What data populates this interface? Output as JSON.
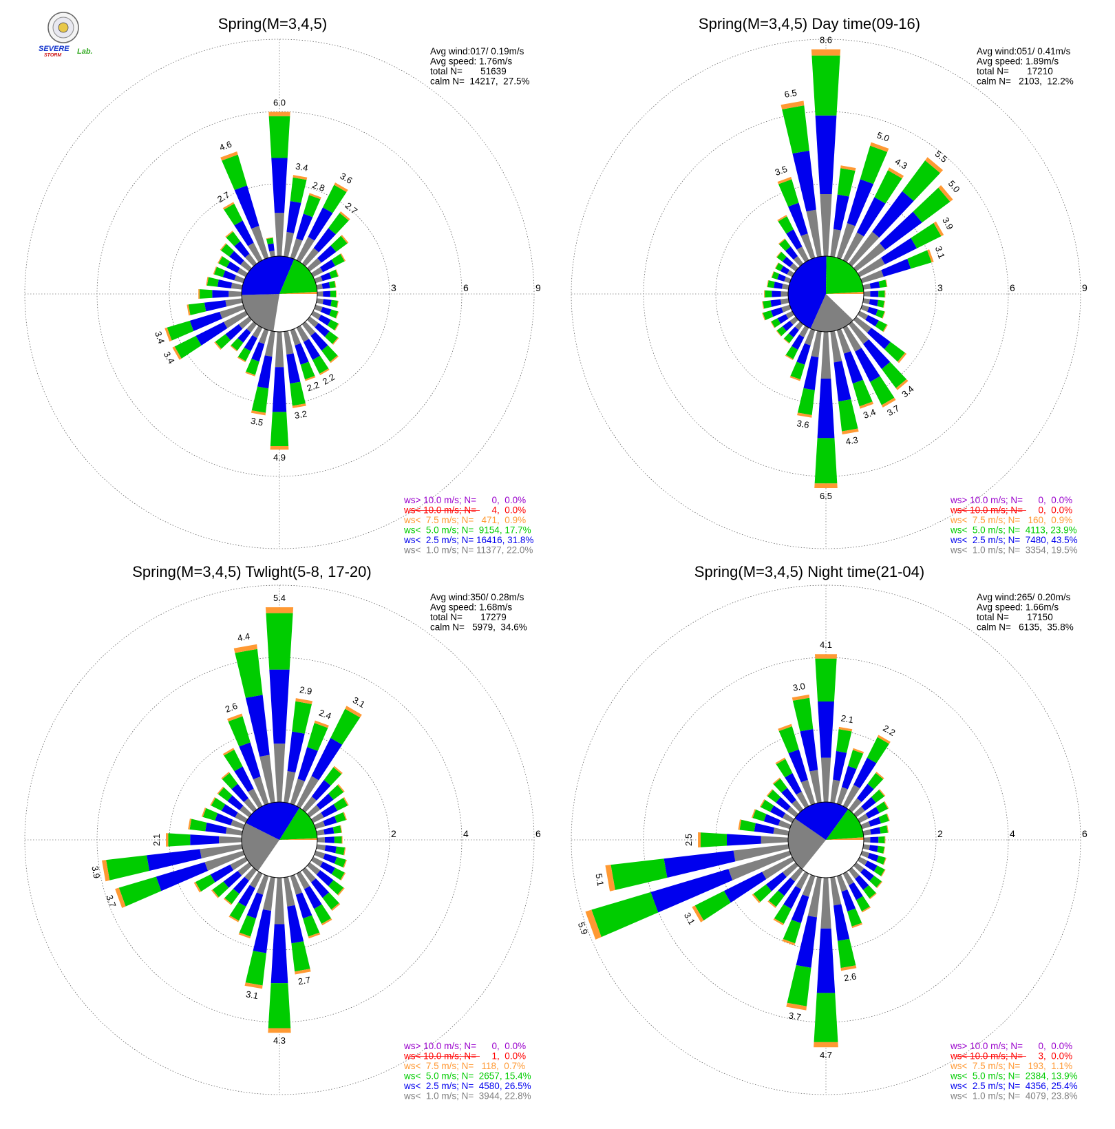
{
  "logo": {
    "line1": "SEVERE",
    "line2": "STORM",
    "line3": "Lab."
  },
  "colors": {
    "gt10": "#9900cc",
    "lt10": "#ff0000",
    "lt75": "#ff9933",
    "lt50": "#00cc00",
    "lt25": "#0000ee",
    "lt10ms": "#808080"
  },
  "chart_data": [
    {
      "type": "windrose",
      "title": "Spring(M=3,4,5)",
      "rings": [
        3,
        6,
        9
      ],
      "info": [
        "Avg wind:017/ 0.19m/s",
        "Avg speed: 1.76m/s",
        "total N=       51639",
        "calm N=  14217,  27.5%"
      ],
      "legend": [
        "ws> 10.0 m/s; N=      0,  0.0%",
        "ws< 10.0 m/s; N=      4,  0.0%",
        "ws<  7.5 m/s; N=   471,  0.9%",
        "ws<  5.0 m/s; N=  9154, 17.7%",
        "ws<  2.5 m/s; N= 16416, 31.8%",
        "ws<  1.0 m/s; N= 11377, 22.0%"
      ],
      "center_pie": [
        27.5,
        22.0,
        31.8,
        17.7,
        0.9
      ],
      "sectors": [
        {
          "dir": 0,
          "total": 6.0,
          "label": "6.0"
        },
        {
          "dir": 10,
          "total": 3.4,
          "label": "3.4"
        },
        {
          "dir": 20,
          "total": 2.8,
          "label": "2.8"
        },
        {
          "dir": 30,
          "total": 3.6,
          "label": "3.6"
        },
        {
          "dir": 40,
          "total": 2.7,
          "label": "2.7"
        },
        {
          "dir": 50,
          "total": 2.0
        },
        {
          "dir": 60,
          "total": 1.5
        },
        {
          "dir": 70,
          "total": 1.0
        },
        {
          "dir": 80,
          "total": 0.8
        },
        {
          "dir": 90,
          "total": 0.8
        },
        {
          "dir": 100,
          "total": 0.9
        },
        {
          "dir": 110,
          "total": 1.0
        },
        {
          "dir": 120,
          "total": 1.2
        },
        {
          "dir": 130,
          "total": 1.5
        },
        {
          "dir": 140,
          "total": 2.0
        },
        {
          "dir": 150,
          "total": 2.2,
          "label": "2.2"
        },
        {
          "dir": 160,
          "total": 2.2,
          "label": "2.2"
        },
        {
          "dir": 170,
          "total": 3.2,
          "label": "3.2"
        },
        {
          "dir": 180,
          "total": 4.9,
          "label": "4.9"
        },
        {
          "dir": 190,
          "total": 3.5,
          "label": "3.5"
        },
        {
          "dir": 200,
          "total": 2.0
        },
        {
          "dir": 210,
          "total": 1.6
        },
        {
          "dir": 220,
          "total": 1.4
        },
        {
          "dir": 230,
          "total": 1.8
        },
        {
          "dir": 240,
          "total": 3.4,
          "label": "3.4"
        },
        {
          "dir": 250,
          "total": 3.4,
          "label": "3.4"
        },
        {
          "dir": 260,
          "total": 2.3
        },
        {
          "dir": 270,
          "total": 1.8
        },
        {
          "dir": 280,
          "total": 1.5
        },
        {
          "dir": 290,
          "total": 1.3
        },
        {
          "dir": 300,
          "total": 1.3
        },
        {
          "dir": 310,
          "total": 1.5
        },
        {
          "dir": 320,
          "total": 1.7
        },
        {
          "dir": 330,
          "total": 2.7,
          "label": "2.7"
        },
        {
          "dir": 340,
          "total": 4.6,
          "label": "4.6"
        },
        {
          "dir": 350,
          "total": 0.8
        }
      ]
    },
    {
      "type": "windrose",
      "title": "Spring(M=3,4,5) Day time(09-16)",
      "rings": [
        3,
        6,
        9
      ],
      "info": [
        "Avg wind:051/ 0.41m/s",
        "Avg speed: 1.89m/s",
        "total N=       17210",
        "calm N=   2103,  12.2%"
      ],
      "legend": [
        "ws> 10.0 m/s; N=      0,  0.0%",
        "ws< 10.0 m/s; N=      0,  0.0%",
        "ws<  7.5 m/s; N=   160,  0.9%",
        "ws<  5.0 m/s; N=  4113, 23.9%",
        "ws<  2.5 m/s; N=  7480, 43.5%",
        "ws<  1.0 m/s; N=  3354, 19.5%"
      ],
      "center_pie": [
        12.2,
        19.5,
        43.5,
        23.9,
        0.9
      ],
      "sectors": [
        {
          "dir": 0,
          "total": 8.6,
          "label": "8.6"
        },
        {
          "dir": 10,
          "total": 3.8
        },
        {
          "dir": 20,
          "total": 5.0,
          "label": "5.0"
        },
        {
          "dir": 30,
          "total": 4.3,
          "label": "4.3"
        },
        {
          "dir": 40,
          "total": 5.5,
          "label": "5.5"
        },
        {
          "dir": 50,
          "total": 5.0,
          "label": "5.0"
        },
        {
          "dir": 60,
          "total": 3.9,
          "label": "3.9"
        },
        {
          "dir": 70,
          "total": 3.1,
          "label": "3.1"
        },
        {
          "dir": 80,
          "total": 1.0
        },
        {
          "dir": 90,
          "total": 0.9
        },
        {
          "dir": 100,
          "total": 0.9
        },
        {
          "dir": 110,
          "total": 1.0
        },
        {
          "dir": 120,
          "total": 1.3
        },
        {
          "dir": 130,
          "total": 2.6
        },
        {
          "dir": 140,
          "total": 3.4,
          "label": "3.4"
        },
        {
          "dir": 150,
          "total": 3.7,
          "label": "3.7"
        },
        {
          "dir": 160,
          "total": 3.4,
          "label": "3.4"
        },
        {
          "dir": 170,
          "total": 4.3,
          "label": "4.3"
        },
        {
          "dir": 180,
          "total": 6.5,
          "label": "6.5"
        },
        {
          "dir": 190,
          "total": 3.6,
          "label": "3.6"
        },
        {
          "dir": 200,
          "total": 2.2
        },
        {
          "dir": 210,
          "total": 1.5
        },
        {
          "dir": 220,
          "total": 1.0
        },
        {
          "dir": 230,
          "total": 1.0
        },
        {
          "dir": 240,
          "total": 1.0
        },
        {
          "dir": 250,
          "total": 1.2
        },
        {
          "dir": 260,
          "total": 1.1
        },
        {
          "dir": 270,
          "total": 1.0
        },
        {
          "dir": 280,
          "total": 0.9
        },
        {
          "dir": 290,
          "total": 0.8
        },
        {
          "dir": 300,
          "total": 0.8
        },
        {
          "dir": 310,
          "total": 1.0
        },
        {
          "dir": 320,
          "total": 1.3
        },
        {
          "dir": 330,
          "total": 2.1
        },
        {
          "dir": 340,
          "total": 3.5,
          "label": "3.5"
        },
        {
          "dir": 350,
          "total": 6.5,
          "label": "6.5"
        }
      ]
    },
    {
      "type": "windrose",
      "title": "Spring(M=3,4,5) Twlight(5-8, 17-20)",
      "rings": [
        2,
        4,
        6
      ],
      "info": [
        "Avg wind:350/ 0.28m/s",
        "Avg speed: 1.68m/s",
        "total N=       17279",
        "calm N=   5979,  34.6%"
      ],
      "legend": [
        "ws> 10.0 m/s; N=      0,  0.0%",
        "ws< 10.0 m/s; N=      1,  0.0%",
        "ws<  7.5 m/s; N=   118,  0.7%",
        "ws<  5.0 m/s; N=  2657, 15.4%",
        "ws<  2.5 m/s; N=  4580, 26.5%",
        "ws<  1.0 m/s; N=  3944, 22.8%"
      ],
      "center_pie": [
        34.6,
        22.8,
        26.5,
        15.4,
        0.7
      ],
      "sectors": [
        {
          "dir": 0,
          "total": 5.4,
          "label": "5.4"
        },
        {
          "dir": 10,
          "total": 2.9,
          "label": "2.9"
        },
        {
          "dir": 20,
          "total": 2.4,
          "label": "2.4"
        },
        {
          "dir": 30,
          "total": 3.1,
          "label": "3.1"
        },
        {
          "dir": 40,
          "total": 1.5
        },
        {
          "dir": 50,
          "total": 1.2
        },
        {
          "dir": 60,
          "total": 1.1
        },
        {
          "dir": 70,
          "total": 0.9
        },
        {
          "dir": 80,
          "total": 0.7
        },
        {
          "dir": 90,
          "total": 0.7
        },
        {
          "dir": 100,
          "total": 0.8
        },
        {
          "dir": 110,
          "total": 0.9
        },
        {
          "dir": 120,
          "total": 1.0
        },
        {
          "dir": 130,
          "total": 1.2
        },
        {
          "dir": 140,
          "total": 1.4
        },
        {
          "dir": 150,
          "total": 1.6
        },
        {
          "dir": 160,
          "total": 1.8
        },
        {
          "dir": 170,
          "total": 2.7,
          "label": "2.7"
        },
        {
          "dir": 180,
          "total": 4.3,
          "label": "4.3"
        },
        {
          "dir": 190,
          "total": 3.1,
          "label": "3.1"
        },
        {
          "dir": 200,
          "total": 1.8
        },
        {
          "dir": 210,
          "total": 1.5
        },
        {
          "dir": 220,
          "total": 1.2
        },
        {
          "dir": 230,
          "total": 1.3
        },
        {
          "dir": 240,
          "total": 1.6
        },
        {
          "dir": 250,
          "total": 3.7,
          "label": "3.7"
        },
        {
          "dir": 260,
          "total": 3.9,
          "label": "3.9"
        },
        {
          "dir": 270,
          "total": 2.1,
          "label": "2.1"
        },
        {
          "dir": 280,
          "total": 1.5
        },
        {
          "dir": 290,
          "total": 1.2
        },
        {
          "dir": 300,
          "total": 1.1
        },
        {
          "dir": 310,
          "total": 1.1
        },
        {
          "dir": 320,
          "total": 1.3
        },
        {
          "dir": 330,
          "total": 1.8
        },
        {
          "dir": 340,
          "total": 2.6,
          "label": "2.6"
        },
        {
          "dir": 350,
          "total": 4.4,
          "label": "4.4"
        }
      ]
    },
    {
      "type": "windrose",
      "title": "Spring(M=3,4,5) Night time(21-04)",
      "rings": [
        2,
        4,
        6
      ],
      "info": [
        "Avg wind:265/ 0.20m/s",
        "Avg speed: 1.66m/s",
        "total N=       17150",
        "calm N=   6135,  35.8%"
      ],
      "legend": [
        "ws> 10.0 m/s; N=      0,  0.0%",
        "ws< 10.0 m/s; N=      3,  0.0%",
        "ws<  7.5 m/s; N=   193,  1.1%",
        "ws<  5.0 m/s; N=  2384, 13.9%",
        "ws<  2.5 m/s; N=  4356, 25.4%",
        "ws<  1.0 m/s; N=  4079, 23.8%"
      ],
      "center_pie": [
        35.8,
        23.8,
        25.4,
        13.9,
        1.1
      ],
      "sectors": [
        {
          "dir": 0,
          "total": 4.1,
          "label": "4.1"
        },
        {
          "dir": 10,
          "total": 2.1,
          "label": "2.1"
        },
        {
          "dir": 20,
          "total": 1.6
        },
        {
          "dir": 30,
          "total": 2.2,
          "label": "2.2"
        },
        {
          "dir": 40,
          "total": 1.3
        },
        {
          "dir": 50,
          "total": 1.0
        },
        {
          "dir": 60,
          "total": 0.9
        },
        {
          "dir": 70,
          "total": 0.8
        },
        {
          "dir": 80,
          "total": 0.7
        },
        {
          "dir": 90,
          "total": 0.6
        },
        {
          "dir": 100,
          "total": 0.6
        },
        {
          "dir": 110,
          "total": 0.7
        },
        {
          "dir": 120,
          "total": 0.8
        },
        {
          "dir": 130,
          "total": 0.9
        },
        {
          "dir": 140,
          "total": 1.0
        },
        {
          "dir": 150,
          "total": 1.2
        },
        {
          "dir": 160,
          "total": 1.5
        },
        {
          "dir": 170,
          "total": 2.6,
          "label": "2.6"
        },
        {
          "dir": 180,
          "total": 4.7,
          "label": "4.7"
        },
        {
          "dir": 190,
          "total": 3.7,
          "label": "3.7"
        },
        {
          "dir": 200,
          "total": 2.0
        },
        {
          "dir": 210,
          "total": 1.6
        },
        {
          "dir": 220,
          "total": 1.3
        },
        {
          "dir": 230,
          "total": 1.5
        },
        {
          "dir": 240,
          "total": 3.1,
          "label": "3.1"
        },
        {
          "dir": 250,
          "total": 5.9,
          "label": "5.9"
        },
        {
          "dir": 260,
          "total": 5.1,
          "label": "5.1"
        },
        {
          "dir": 270,
          "total": 2.5,
          "label": "2.5"
        },
        {
          "dir": 280,
          "total": 1.4
        },
        {
          "dir": 290,
          "total": 1.1
        },
        {
          "dir": 300,
          "total": 1.0
        },
        {
          "dir": 310,
          "total": 1.0
        },
        {
          "dir": 320,
          "total": 1.1
        },
        {
          "dir": 330,
          "total": 1.5
        },
        {
          "dir": 340,
          "total": 2.3
        },
        {
          "dir": 350,
          "total": 3.0,
          "label": "3.0"
        }
      ]
    }
  ]
}
